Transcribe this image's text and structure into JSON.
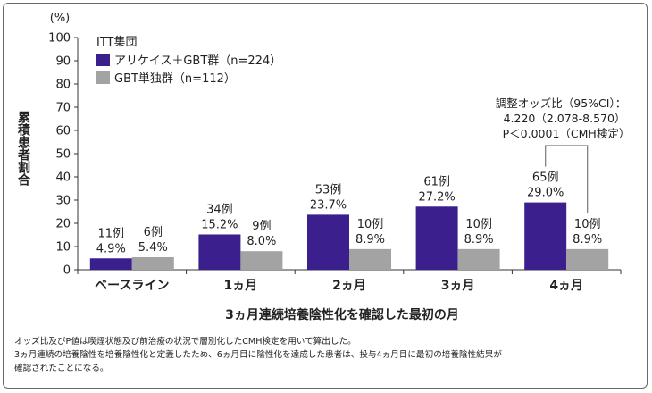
{
  "chart_data": {
    "type": "bar",
    "ylabel": "累積患者割合",
    "yunit": "(%)",
    "ylim": [
      0,
      100
    ],
    "yticks": [
      0,
      10,
      20,
      30,
      40,
      50,
      60,
      70,
      80,
      90,
      100
    ],
    "xlabel": "3ヵ月連続培養陰性化を確認した最初の月",
    "categories": [
      "ベースライン",
      "1ヵ月",
      "2ヵ月",
      "3ヵ月",
      "4ヵ月"
    ],
    "legend_title": "ITT集団",
    "legend_position": "top-left",
    "series": [
      {
        "name": "アリケイス＋GBT群（n=224）",
        "color": "#3b1f8c",
        "values": [
          4.9,
          15.2,
          23.7,
          27.2,
          29.0
        ],
        "labels": [
          "4.9%",
          "15.2%",
          "23.7%",
          "27.2%",
          "29.0%"
        ],
        "counts": [
          "11例",
          "34例",
          "53例",
          "61例",
          "65例"
        ]
      },
      {
        "name": "GBT単独群（n=112）",
        "color": "#a3a3a3",
        "values": [
          5.4,
          8.0,
          8.9,
          8.9,
          8.9
        ],
        "labels": [
          "5.4%",
          "8.0%",
          "8.9%",
          "8.9%",
          "8.9%"
        ],
        "counts": [
          "6例",
          "9例",
          "10例",
          "10例",
          "10例"
        ]
      }
    ],
    "annotation": {
      "lines": [
        "調整オッズ比（95%CI）：",
        "4.220（2.078-8.570）",
        "P＜0.0001（CMH検定）"
      ],
      "category_index": 4
    }
  },
  "footnotes": [
    "オッズ比及びP値は喫煙状態及び前治療の状況で層別化したCMH検定を用いて算出した。",
    "3ヵ月連続の培養陰性を培養陰性化と定義したため、6ヵ月目に陰性化を達成した患者は、投与4ヵ月目に最初の培養陰性結果が",
    "確認されたことになる。"
  ]
}
